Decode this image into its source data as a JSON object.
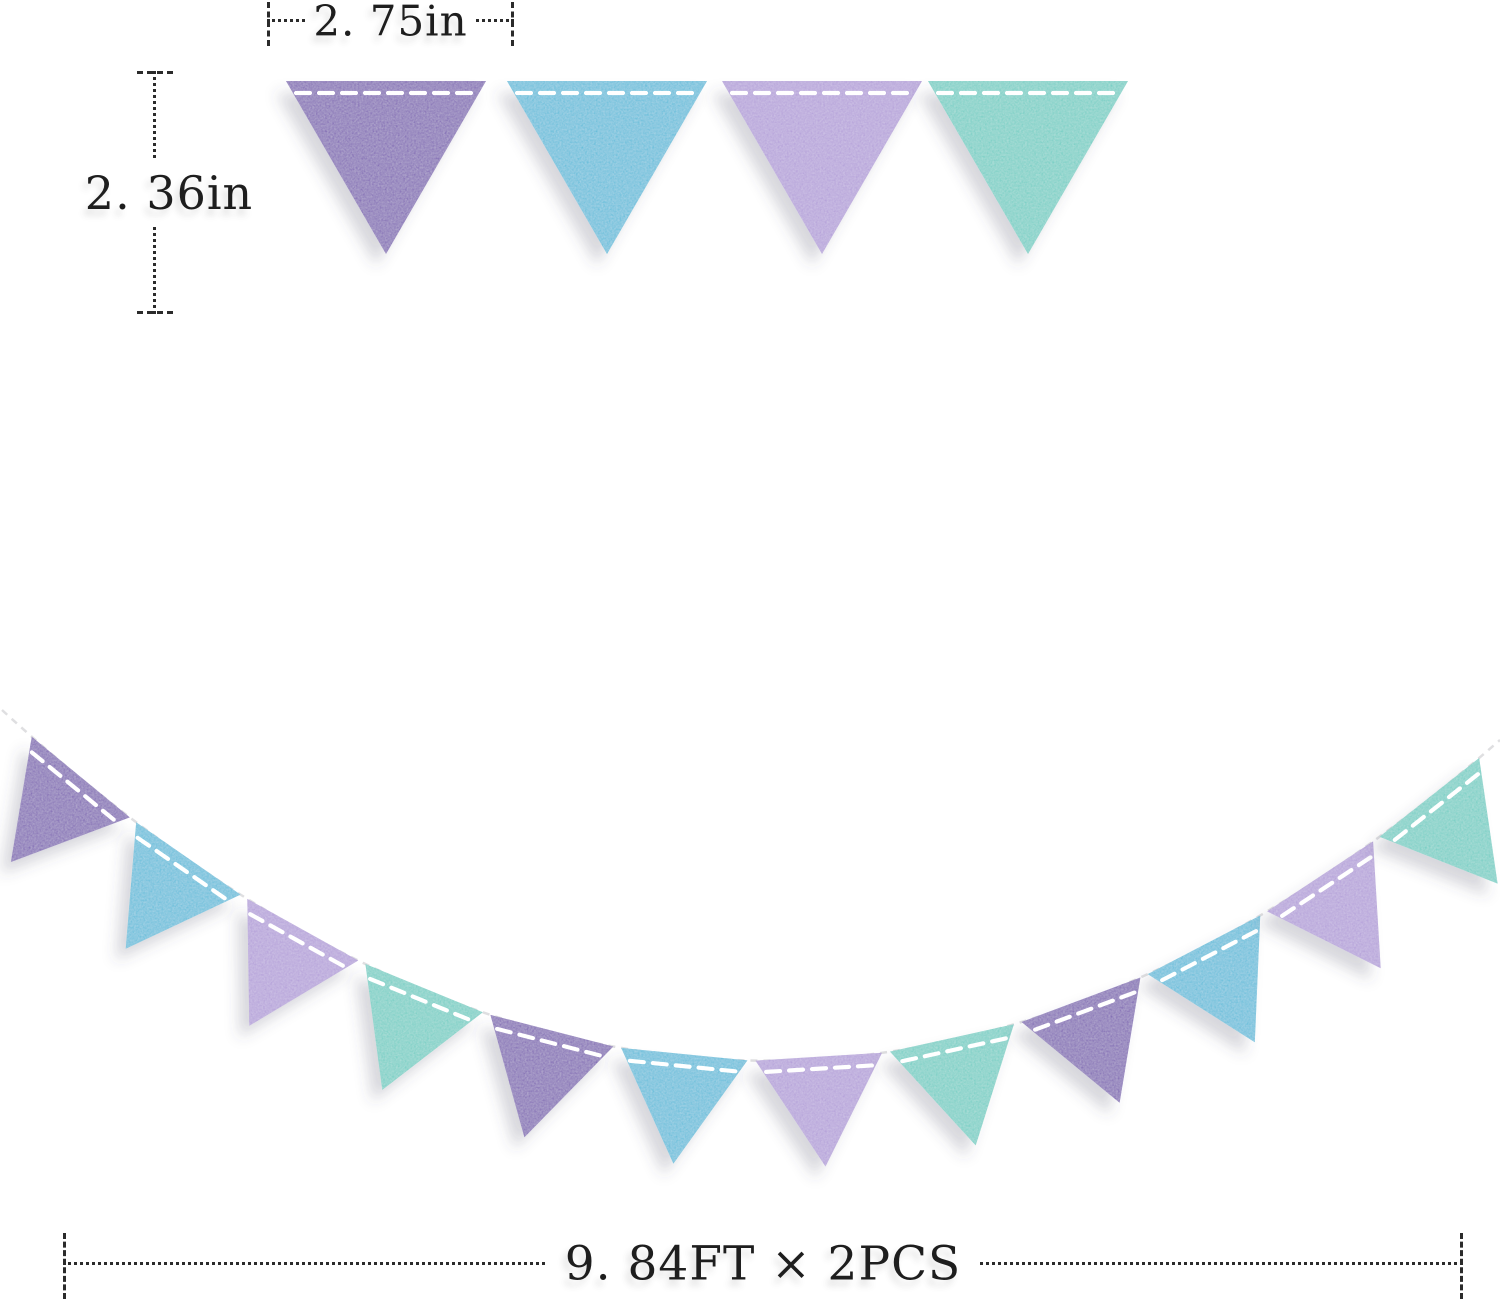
{
  "colors": {
    "purple": "#6640a9",
    "blue": "#2eb4d6",
    "lavender": "#a88fd4",
    "teal": "#53c8bc",
    "stitch": "#ffffff",
    "string": "#dcdcde",
    "annotation": "#2b2b2b",
    "background": "#ffffff"
  },
  "pennant_sample_row": {
    "count": 4,
    "colors": [
      "purple",
      "blue",
      "lavender",
      "teal"
    ],
    "width_label": "2. 75in",
    "height_label": "2. 36in"
  },
  "garland": {
    "pennant_count": 12,
    "color_sequence": [
      "purple",
      "blue",
      "lavender",
      "teal"
    ],
    "repeats": 3,
    "length_label": "9. 84FT × 2PCS"
  }
}
